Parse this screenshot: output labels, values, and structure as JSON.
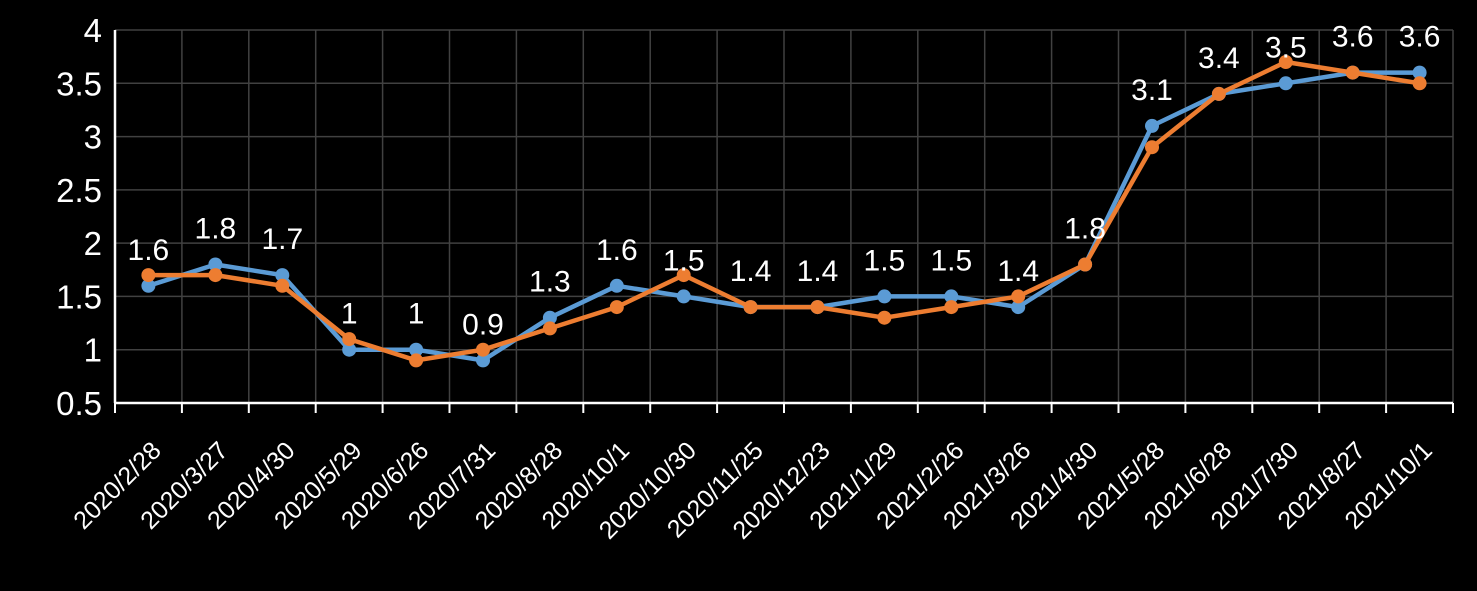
{
  "window": {
    "background": "#000000"
  },
  "chart_data": {
    "type": "line",
    "title": "",
    "categories": [
      "2020/2/28",
      "2020/3/27",
      "2020/4/30",
      "2020/5/29",
      "2020/6/26",
      "2020/7/31",
      "2020/8/28",
      "2020/10/1",
      "2020/10/30",
      "2020/11/25",
      "2020/12/23",
      "2021/1/29",
      "2021/2/26",
      "2021/3/26",
      "2021/4/30",
      "2021/5/28",
      "2021/6/28",
      "2021/7/30",
      "2021/8/27",
      "2021/10/1"
    ],
    "series": [
      {
        "name": "blue",
        "color": "#5B9BD5",
        "values": [
          1.6,
          1.8,
          1.7,
          1.0,
          1.0,
          0.9,
          1.3,
          1.6,
          1.5,
          1.4,
          1.4,
          1.5,
          1.5,
          1.4,
          1.8,
          3.1,
          3.4,
          3.5,
          3.6,
          3.6
        ]
      },
      {
        "name": "orange",
        "color": "#ED7D31",
        "values": [
          1.7,
          1.7,
          1.6,
          1.1,
          0.9,
          1.0,
          1.2,
          1.4,
          1.7,
          1.4,
          1.4,
          1.3,
          1.4,
          1.5,
          1.8,
          2.9,
          3.4,
          3.7,
          3.6,
          3.5
        ]
      }
    ],
    "data_labels": {
      "on_series": "blue",
      "color": "#FFFFFF",
      "values": [
        "1.6",
        "1.8",
        "1.7",
        "1",
        "1",
        "0.9",
        "1.3",
        "1.6",
        "1.5",
        "1.4",
        "1.4",
        "1.5",
        "1.5",
        "1.4",
        "1.8",
        "3.1",
        "3.4",
        "3.5",
        "3.6",
        "3.6"
      ]
    },
    "y_axis": {
      "min": 0.5,
      "max": 4,
      "step": 0.5,
      "tick_labels": [
        "4",
        "3.5",
        "3",
        "2.5",
        "2",
        "1.5",
        "1",
        "0.5"
      ],
      "color": "#FFFFFF"
    },
    "x_axis": {
      "tick_labels_rotation_deg": -45,
      "color": "#FFFFFF"
    },
    "grid": {
      "show": true,
      "color": "#414141"
    },
    "axis_color": "#FFFFFF",
    "legend": "none",
    "background": "#000000"
  }
}
